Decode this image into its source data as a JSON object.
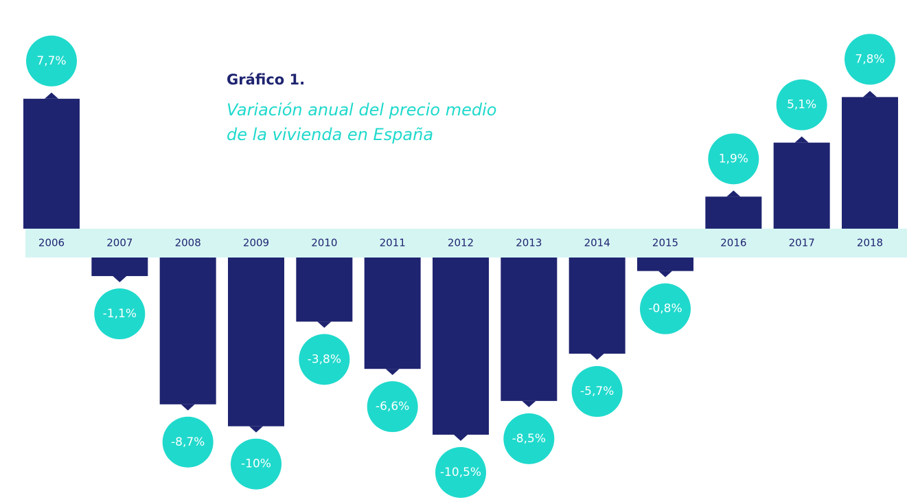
{
  "chart_data": {
    "type": "bar",
    "title": "Gráfico 1.",
    "subtitle": [
      "Variación anual del precio medio",
      "de la vivienda en España"
    ],
    "categories": [
      "2006",
      "2007",
      "2008",
      "2009",
      "2010",
      "2011",
      "2012",
      "2013",
      "2014",
      "2015",
      "2016",
      "2017",
      "2018"
    ],
    "values": [
      7.7,
      -1.1,
      -8.7,
      -10,
      -3.8,
      -6.6,
      -10.5,
      -8.5,
      -5.7,
      -0.8,
      1.9,
      5.1,
      7.8
    ],
    "value_labels": [
      "7,7%",
      "-1,1%",
      "-8,7%",
      "-10%",
      "-3,8%",
      "-6,6%",
      "-10,5%",
      "-8,5%",
      "-5,7%",
      "-0,8%",
      "1,9%",
      "5,1%",
      "7,8%"
    ],
    "color": "#1f2470",
    "label_color": "#1fd9cc"
  }
}
